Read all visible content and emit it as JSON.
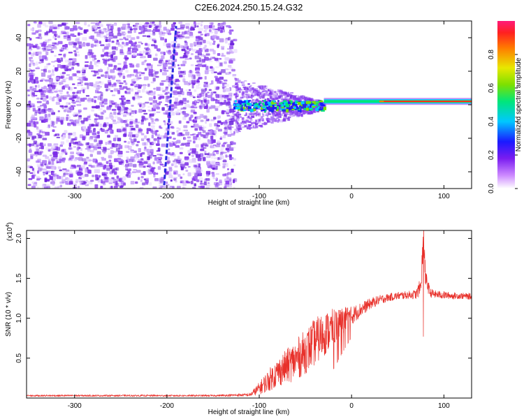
{
  "title": "C2E6.2024.250.15.24.G32",
  "colors": {
    "snr_line": "#e8302a",
    "axis": "#000000",
    "spectrogram_noise": "#7b2be6",
    "track_line": "#2a2ae0"
  },
  "chart_data": [
    {
      "type": "heatmap",
      "xlabel": "Height of straight line (km)",
      "ylabel": "Frequency (Hz)",
      "xlim": [
        -352,
        130
      ],
      "ylim": [
        -50,
        50
      ],
      "xticks": [
        {
          "value": -300,
          "label": "-300"
        },
        {
          "value": -200,
          "label": "-200"
        },
        {
          "value": -100,
          "label": "-100"
        },
        {
          "value": 0,
          "label": "0"
        },
        {
          "value": 100,
          "label": "100"
        }
      ],
      "yticks": [
        {
          "value": -40,
          "label": "-40"
        },
        {
          "value": -20,
          "label": "-20"
        },
        {
          "value": 0,
          "label": "0"
        },
        {
          "value": 20,
          "label": "20"
        },
        {
          "value": 40,
          "label": "40"
        }
      ],
      "colorbar": {
        "label": "Normalized spectral amplitude",
        "range": [
          0,
          1
        ],
        "ticks": [
          {
            "value": 0.0,
            "label": "0.0"
          },
          {
            "value": 0.2,
            "label": "0.2"
          },
          {
            "value": 0.4,
            "label": "0.4"
          },
          {
            "value": 0.6,
            "label": "0.6"
          },
          {
            "value": 0.8,
            "label": "0.8"
          }
        ]
      },
      "noise_region_x": [
        -352,
        -128
      ],
      "transition_region_x": [
        -128,
        -30
      ],
      "carrier_line": {
        "x": [
          -30,
          130
        ],
        "frequency": 2,
        "peak_amplitude": 0.95
      },
      "track_line": {
        "x": [
          -203,
          -190
        ],
        "frequency": [
          -48,
          47
        ]
      }
    },
    {
      "type": "line",
      "xlabel": "Height of straight line (km)",
      "ylabel": "SNR (10 * v/v)",
      "scale_label": "(x10",
      "scale_exp": "4",
      "scale_close": ")",
      "xlim": [
        -352,
        130
      ],
      "ylim": [
        0,
        2.1
      ],
      "xticks": [
        {
          "value": -300,
          "label": "-300"
        },
        {
          "value": -200,
          "label": "-200"
        },
        {
          "value": -100,
          "label": "-100"
        },
        {
          "value": 0,
          "label": "0"
        },
        {
          "value": 100,
          "label": "100"
        }
      ],
      "yticks": [
        {
          "value": 0.5,
          "label": "0.5"
        },
        {
          "value": 1.0,
          "label": "1.0"
        },
        {
          "value": 1.5,
          "label": "1.5"
        },
        {
          "value": 2.0,
          "label": "2.0"
        }
      ],
      "series": [
        {
          "x": [
            -352,
            -300,
            -250,
            -200,
            -150,
            -110,
            -100,
            -90,
            -80,
            -70,
            -60,
            -50,
            -40,
            -30,
            -20,
            -10,
            0,
            10,
            20,
            30,
            40,
            50,
            60,
            70,
            75,
            78,
            80,
            85,
            90,
            100,
            110,
            120,
            130
          ],
          "y": [
            0.03,
            0.03,
            0.03,
            0.03,
            0.03,
            0.04,
            0.12,
            0.22,
            0.32,
            0.4,
            0.48,
            0.58,
            0.7,
            0.8,
            0.88,
            0.96,
            1.03,
            1.11,
            1.18,
            1.23,
            1.26,
            1.28,
            1.29,
            1.3,
            1.4,
            2.08,
            1.5,
            1.32,
            1.3,
            1.29,
            1.28,
            1.28,
            1.27
          ],
          "noise_amplitude": [
            0.01,
            0.01,
            0.01,
            0.01,
            0.01,
            0.02,
            0.08,
            0.14,
            0.18,
            0.22,
            0.26,
            0.28,
            0.3,
            0.28,
            0.24,
            0.18,
            0.12,
            0.09,
            0.07,
            0.06,
            0.05,
            0.05,
            0.05,
            0.06,
            0.12,
            0.2,
            0.12,
            0.06,
            0.05,
            0.05,
            0.04,
            0.04,
            0.04
          ]
        }
      ]
    }
  ]
}
